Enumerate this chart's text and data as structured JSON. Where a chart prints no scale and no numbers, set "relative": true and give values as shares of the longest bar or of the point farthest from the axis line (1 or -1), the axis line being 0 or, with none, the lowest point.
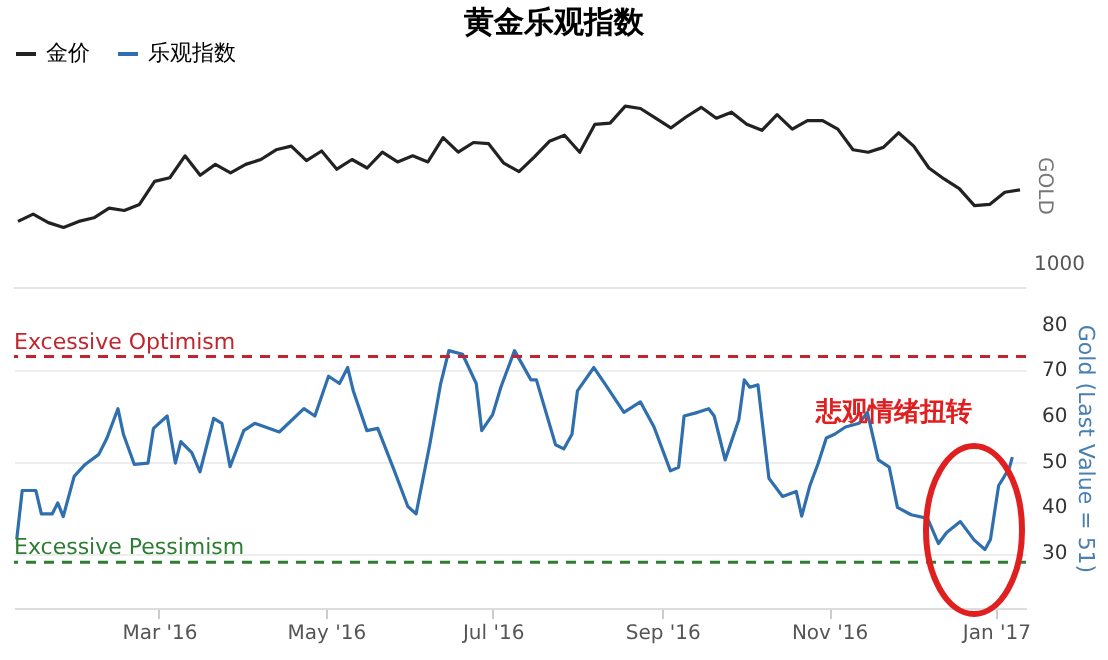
{
  "chart_data": [
    {
      "type": "line",
      "title": "黄金乐观指数",
      "ylabel": "GOLD",
      "relative": true,
      "legend": "top",
      "annotations": [
        "1000"
      ],
      "categories": [
        null,
        null,
        null,
        null,
        null,
        null,
        null,
        null,
        null,
        null,
        null,
        null,
        null,
        null,
        null,
        null,
        null,
        null,
        null,
        null,
        null,
        null,
        null,
        null,
        null,
        null,
        null,
        null,
        null,
        null,
        null,
        null,
        null,
        null,
        null,
        null,
        null,
        null,
        null,
        null,
        null,
        null,
        null,
        null,
        null,
        null,
        null,
        null,
        null,
        null,
        null,
        null,
        null,
        null,
        null,
        null,
        null,
        null,
        null,
        null,
        null,
        null,
        null,
        null,
        null,
        null,
        null
      ],
      "series": [
        {
          "name": "金价",
          "color": "#222222",
          "values": [
            0.05,
            0.11,
            0.04,
            0,
            0.05,
            0.08,
            0.16,
            0.14,
            0.19,
            0.38,
            0.41,
            0.59,
            0.43,
            0.52,
            0.45,
            0.52,
            0.56,
            0.64,
            0.67,
            0.55,
            0.63,
            0.48,
            0.56,
            0.49,
            0.62,
            0.54,
            0.59,
            0.54,
            0.74,
            0.62,
            0.7,
            0.69,
            0.53,
            0.46,
            0.58,
            0.71,
            0.76,
            0.62,
            0.85,
            0.86,
            1,
            0.98,
            0.9,
            0.82,
            0.91,
            0.99,
            0.9,
            0.95,
            0.85,
            0.8,
            0.93,
            0.81,
            0.88,
            0.88,
            0.81,
            0.64,
            0.62,
            0.66,
            0.78,
            0.67,
            0.49,
            0.4,
            0.32,
            0.18,
            0.19,
            0.29,
            0.31
          ]
        }
      ]
    },
    {
      "type": "line",
      "ylabel": "Gold (Last Value = 51)",
      "legend": "top",
      "grid": "y",
      "ylim": [
        18,
        88
      ],
      "yticks": [
        30,
        40,
        50,
        60,
        70,
        80
      ],
      "xlim": [
        "2016-01-08",
        "2017-01-12"
      ],
      "xticks": [
        {
          "value": "2016-03-01",
          "label": "Mar '16"
        },
        {
          "value": "2016-05-01",
          "label": "May '16"
        },
        {
          "value": "2016-07-01",
          "label": "Jul '16"
        },
        {
          "value": "2016-09-01",
          "label": "Sep '16"
        },
        {
          "value": "2016-11-01",
          "label": "Nov '16"
        },
        {
          "value": "2017-01-01",
          "label": "Jan '17"
        }
      ],
      "ref_lines": [
        {
          "axis": "y",
          "value": 73,
          "label": "Excessive Optimism",
          "color": "#c0262d",
          "line_style": "dashed"
        },
        {
          "axis": "y",
          "value": 28,
          "label": "Excessive Pessimism",
          "color": "#2e7d32",
          "line_style": "dashed"
        }
      ],
      "annotations": [
        "悲观情绪扭转"
      ],
      "x": [
        "2016-01-09",
        "2016-01-11",
        "2016-01-16",
        "2016-01-18",
        "2016-01-22",
        "2016-01-24",
        "2016-01-26",
        "2016-01-30",
        "2016-02-03",
        "2016-02-08",
        "2016-02-11",
        "2016-02-15",
        "2016-02-17",
        "2016-02-21",
        "2016-02-26",
        "2016-02-28",
        "2016-03-04",
        "2016-03-07",
        "2016-03-09",
        "2016-03-13",
        "2016-03-16",
        "2016-03-21",
        "2016-03-24",
        "2016-03-27",
        "2016-04-01",
        "2016-04-05",
        "2016-04-14",
        "2016-04-23",
        "2016-04-27",
        "2016-05-02",
        "2016-05-06",
        "2016-05-09",
        "2016-05-11",
        "2016-05-16",
        "2016-05-20",
        "2016-05-26",
        "2016-05-31",
        "2016-06-03",
        "2016-06-08",
        "2016-06-12",
        "2016-06-15",
        "2016-06-20",
        "2016-06-25",
        "2016-06-27",
        "2016-07-01",
        "2016-07-04",
        "2016-07-09",
        "2016-07-15",
        "2016-07-17",
        "2016-07-24",
        "2016-07-27",
        "2016-07-30",
        "2016-08-01",
        "2016-08-07",
        "2016-08-11",
        "2016-08-18",
        "2016-08-24",
        "2016-08-29",
        "2016-09-04",
        "2016-09-07",
        "2016-09-09",
        "2016-09-14",
        "2016-09-18",
        "2016-09-20",
        "2016-09-24",
        "2016-09-29",
        "2016-10-01",
        "2016-10-03",
        "2016-10-06",
        "2016-10-10",
        "2016-10-15",
        "2016-10-20",
        "2016-10-22",
        "2016-10-25",
        "2016-10-28",
        "2016-10-31",
        "2016-11-03",
        "2016-11-07",
        "2016-11-12",
        "2016-11-15",
        "2016-11-19",
        "2016-11-23",
        "2016-11-26",
        "2016-12-01",
        "2016-12-07",
        "2016-12-11",
        "2016-12-14",
        "2016-12-19",
        "2016-12-24",
        "2016-12-28",
        "2016-12-30",
        "2017-01-02",
        "2017-01-04",
        "2017-01-06",
        "2017-01-07"
      ],
      "series": [
        {
          "name": "乐观指数",
          "color": "#2f6fad",
          "values": [
            33,
            43.7,
            43.7,
            38.6,
            38.6,
            41,
            38,
            46.8,
            49.4,
            51.6,
            55.2,
            61.6,
            56,
            49.4,
            49.7,
            57.3,
            60,
            49.7,
            54.4,
            52,
            47.8,
            59.5,
            58.4,
            48.9,
            56.8,
            58.4,
            56.5,
            61.6,
            60,
            68.7,
            67.1,
            70.6,
            65.6,
            56.8,
            57.3,
            48.1,
            40.2,
            38.6,
            53.7,
            67.1,
            74.3,
            73.5,
            67.1,
            56.8,
            60.3,
            66.3,
            74.3,
            67.9,
            67.9,
            53.7,
            52.8,
            56,
            65.5,
            70.6,
            67.1,
            60.8,
            63.1,
            57.6,
            48,
            48.8,
            60,
            60.8,
            61.6,
            60,
            50.4,
            59.2,
            67.9,
            66.3,
            66.8,
            46.4,
            42.4,
            43.5,
            38.1,
            44.8,
            49.6,
            55.2,
            56,
            57.6,
            58.4,
            60.8,
            50.4,
            48.8,
            40,
            38.4,
            37.6,
            32.1,
            34.5,
            36.9,
            32.9,
            30.8,
            33,
            44.8,
            46.7,
            48.8,
            51
          ]
        }
      ]
    }
  ]
}
